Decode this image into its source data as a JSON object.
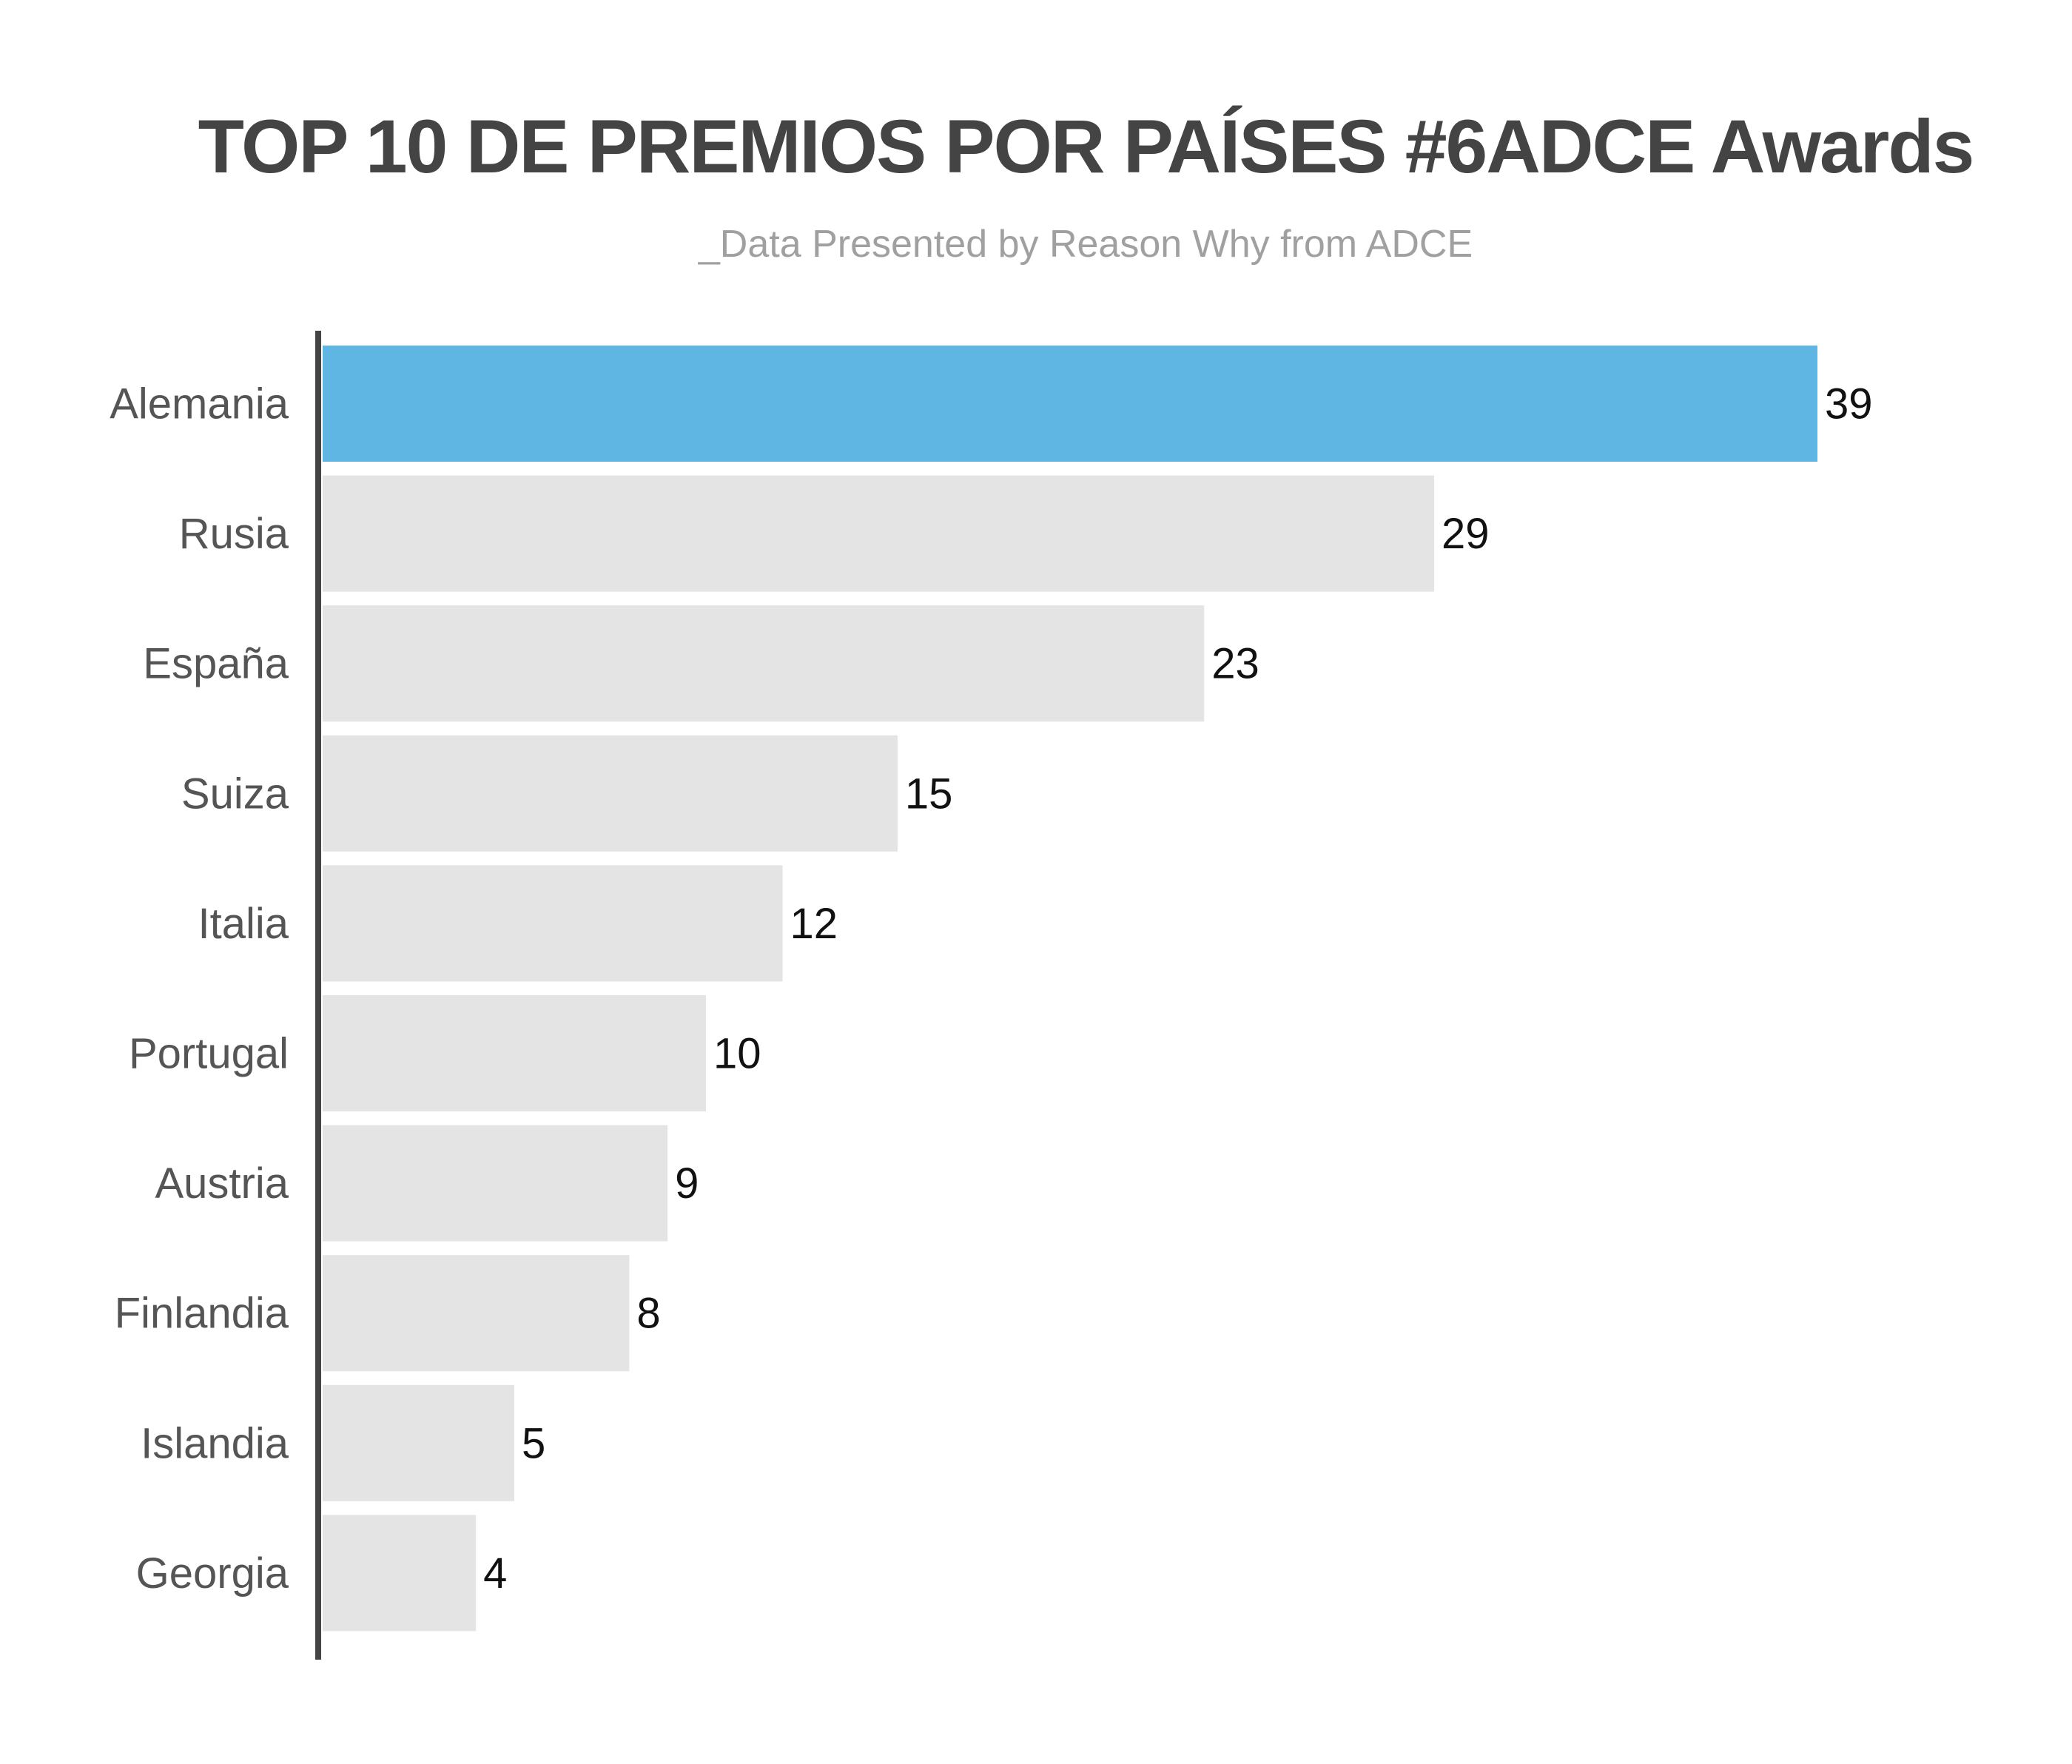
{
  "chart_data": {
    "type": "bar",
    "orientation": "horizontal",
    "title": "TOP 10 DE PREMIOS POR PAÍSES #6ADCE Awards",
    "subtitle": "_Data Presented by Reason Why from ADCE",
    "categories": [
      "Alemania",
      "Rusia",
      "España",
      "Suiza",
      "Italia",
      "Portugal",
      "Austria",
      "Finlandia",
      "Islandia",
      "Georgia"
    ],
    "values": [
      39,
      29,
      23,
      15,
      12,
      10,
      9,
      8,
      5,
      4
    ],
    "data_labels": [
      "39",
      "29",
      "23",
      "15",
      "12",
      "10",
      "9",
      "8",
      "5",
      "4"
    ],
    "xlim": [
      0,
      39
    ],
    "grid": false,
    "legend": "none",
    "highlight_index": 0,
    "colors": {
      "highlight": "#60b6e3",
      "bar": "#e4e4e4",
      "axis": "#444444",
      "category_label": "#555555",
      "value_label": "#111111",
      "title": "#444444",
      "subtitle": "#a0a0a0"
    }
  }
}
